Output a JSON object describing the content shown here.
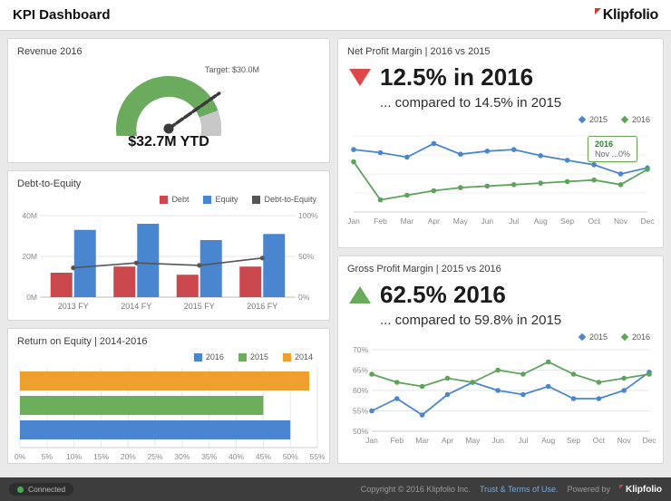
{
  "header": {
    "title": "KPI Dashboard",
    "logo_text": "Klipfolio"
  },
  "footer": {
    "status": "Connected",
    "copyright": "Copyright © 2016 Klipfolio Inc.",
    "terms_link": "Trust & Terms of Use.",
    "powered_by": "Powered by",
    "logo_text": "Klipfolio"
  },
  "panels": {
    "revenue": {
      "title": "Revenue 2016"
    },
    "debt_equity": {
      "title": "Debt-to-Equity"
    },
    "roe": {
      "title": "Return on Equity | 2014-2016"
    },
    "npm": {
      "title": "Net Profit Margin | 2016 vs 2015",
      "headline": "12.5% in 2016",
      "subline": "... compared to 14.5% in 2015"
    },
    "gpm": {
      "title": "Gross Profit Margin | 2015 vs 2016",
      "headline": "62.5% 2016",
      "subline": "... compared to 59.8% in 2015"
    }
  },
  "chart_data": [
    {
      "id": "revenue_gauge",
      "type": "gauge",
      "title": "Revenue 2016",
      "value": 32.7,
      "value_label": "$32.7M YTD",
      "target": 30.0,
      "target_label": "Target: $30.0M",
      "min": 0,
      "max": 40,
      "colors": {
        "fill": "#6bab5e",
        "rest": "#c7c7c7",
        "needle": "#3a3a3a"
      }
    },
    {
      "id": "debt_to_equity",
      "type": "bar",
      "title": "Debt-to-Equity",
      "categories": [
        "2013 FY",
        "2014 FY",
        "2015 FY",
        "2016 FY"
      ],
      "series": [
        {
          "name": "Debt",
          "kind": "bar",
          "color": "#c9474d",
          "values": [
            12,
            15,
            11,
            15
          ]
        },
        {
          "name": "Equity",
          "kind": "bar",
          "color": "#4a86cf",
          "values": [
            33,
            36,
            28,
            31
          ]
        },
        {
          "name": "Debt-to-Equity",
          "kind": "line",
          "color": "#555555",
          "values_pct": [
            36,
            42,
            39,
            48
          ]
        }
      ],
      "y_left": {
        "labels": [
          "0M",
          "20M",
          "40M"
        ],
        "max": 40
      },
      "y_right": {
        "labels": [
          "0%",
          "50%",
          "100%"
        ],
        "max": 100
      },
      "legend_position": "top-right"
    },
    {
      "id": "return_on_equity",
      "type": "bar",
      "orientation": "horizontal",
      "title": "Return on Equity | 2014-2016",
      "series": [
        {
          "name": "2014",
          "color": "#ef9f2e",
          "value": 53.5
        },
        {
          "name": "2015",
          "color": "#6cae5b",
          "value": 45
        },
        {
          "name": "2016",
          "color": "#4a86cf",
          "value": 50
        }
      ],
      "legend_order": [
        "2016",
        "2015",
        "2014"
      ],
      "x_ticks": [
        "0%",
        "5%",
        "10%",
        "15%",
        "20%",
        "25%",
        "30%",
        "35%",
        "40%",
        "45%",
        "50%",
        "55%"
      ],
      "xlim": [
        0,
        55
      ],
      "grid": true
    },
    {
      "id": "net_profit_margin",
      "type": "line",
      "title": "Net Profit Margin | 2016 vs 2015",
      "categories": [
        "Jan",
        "Feb",
        "Mar",
        "Apr",
        "May",
        "Jun",
        "Jul",
        "Aug",
        "Sep",
        "Oct",
        "Nov",
        "Dec"
      ],
      "series": [
        {
          "name": "2015",
          "color": "#4a86cf",
          "values": [
            14.6,
            14.4,
            14.1,
            15.0,
            14.3,
            14.5,
            14.6,
            14.2,
            13.9,
            13.6,
            13.0,
            13.4
          ]
        },
        {
          "name": "2016",
          "color": "#5da35a",
          "values": [
            13.8,
            11.3,
            11.6,
            11.9,
            12.1,
            12.2,
            12.3,
            12.4,
            12.5,
            12.6,
            12.3,
            13.3
          ]
        }
      ],
      "ylim": [
        10.5,
        15.5
      ],
      "legend_position": "top-right",
      "tooltip": {
        "line1": "2016",
        "line2": "Nov ...0%"
      }
    },
    {
      "id": "gross_profit_margin",
      "type": "line",
      "title": "Gross Profit Margin | 2015 vs 2016",
      "categories": [
        "Jan",
        "Feb",
        "Mar",
        "Apr",
        "May",
        "Jun",
        "Jul",
        "Aug",
        "Sep",
        "Oct",
        "Nov",
        "Dec"
      ],
      "series": [
        {
          "name": "2015",
          "color": "#4a86cf",
          "values": [
            55,
            58,
            54,
            59,
            62,
            60,
            59,
            61,
            58,
            58,
            60,
            64.5
          ]
        },
        {
          "name": "2016",
          "color": "#5da35a",
          "values": [
            64,
            62,
            61,
            63,
            62,
            65,
            64,
            67,
            64,
            62,
            63,
            64
          ]
        }
      ],
      "y_ticks": [
        "70%",
        "65%",
        "60%",
        "55%",
        "50%"
      ],
      "ylim": [
        50,
        70
      ],
      "legend_position": "top-right"
    }
  ]
}
